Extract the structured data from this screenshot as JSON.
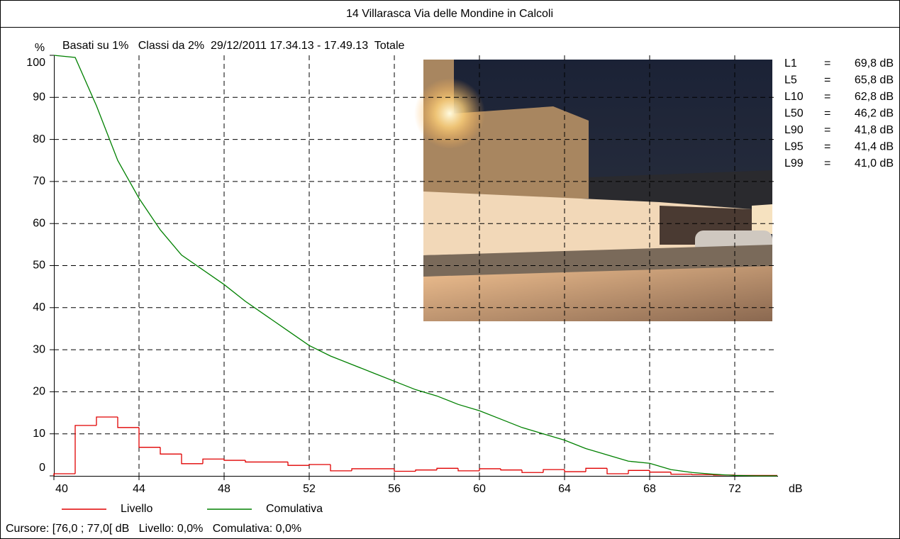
{
  "chart_data": {
    "type": "histogram",
    "title": "14 Villarasca Via delle Mondine in Calcoli",
    "subtitle": "Basati su 1%   Classi da 2%  29/12/2011 17.34.13 - 17.49.13  Totale",
    "y_label": "%",
    "x_label": "dB",
    "bins": [
      40,
      41,
      42,
      43,
      44,
      45,
      46,
      47,
      48,
      49,
      50,
      51,
      52,
      53,
      54,
      55,
      56,
      57,
      58,
      59,
      60,
      61,
      62,
      63,
      64,
      65,
      66,
      67,
      68,
      69,
      70,
      71,
      72,
      73,
      74
    ],
    "series": [
      {
        "name": "Livello",
        "color": "#e00000",
        "type": "histogram",
        "values": [
          0.5,
          12,
          14,
          11.5,
          6.8,
          5.2,
          2.9,
          4,
          3.7,
          3.3,
          3.3,
          2.5,
          2.7,
          1.2,
          1.7,
          1.7,
          1.1,
          1.4,
          1.8,
          1.2,
          1.7,
          1.4,
          0.8,
          1.5,
          1,
          1.8,
          0.5,
          1.3,
          0.9,
          0.4,
          0.3,
          0.2,
          0.1,
          0.1
        ]
      },
      {
        "name": "Comulativa",
        "color": "#008000",
        "type": "line",
        "x": [
          40,
          41,
          42,
          43,
          44,
          45,
          46,
          47,
          48,
          49,
          50,
          51,
          52,
          53,
          54,
          55,
          56,
          57,
          58,
          59,
          60,
          61,
          62,
          63,
          64,
          65,
          66,
          67,
          68,
          69,
          70,
          71,
          72,
          73,
          74
        ],
        "values": [
          100,
          99.5,
          88,
          75,
          66,
          58.5,
          52.5,
          49,
          45.5,
          41.5,
          38,
          34.5,
          31,
          28.5,
          26.5,
          24.5,
          22.5,
          20.5,
          19,
          17,
          15.5,
          13.5,
          11.5,
          10,
          8.5,
          6.5,
          5,
          3.5,
          3,
          1.5,
          0.8,
          0.4,
          0.1,
          0,
          0
        ]
      }
    ],
    "xlim": [
      40,
      74
    ],
    "ylim": [
      0,
      100
    ],
    "xticks": [
      40,
      44,
      48,
      52,
      56,
      60,
      64,
      68,
      72
    ],
    "yticks": [
      0,
      10,
      20,
      30,
      40,
      50,
      60,
      70,
      80,
      90,
      100
    ],
    "grid": true,
    "legend": "bottom",
    "stats_separator": "=",
    "stats": [
      {
        "label": "L1",
        "value": "69,8 dB"
      },
      {
        "label": "L5",
        "value": "65,8 dB"
      },
      {
        "label": "L10",
        "value": "62,8 dB"
      },
      {
        "label": "L50",
        "value": "46,2 dB"
      },
      {
        "label": "L90",
        "value": "41,8 dB"
      },
      {
        "label": "L95",
        "value": "41,4 dB"
      },
      {
        "label": "L99",
        "value": "41,0 dB"
      }
    ],
    "footer": "Cursore: [76,0 ; 77,0[ dB   Livello: 0,0%   Comulativa: 0,0%"
  }
}
